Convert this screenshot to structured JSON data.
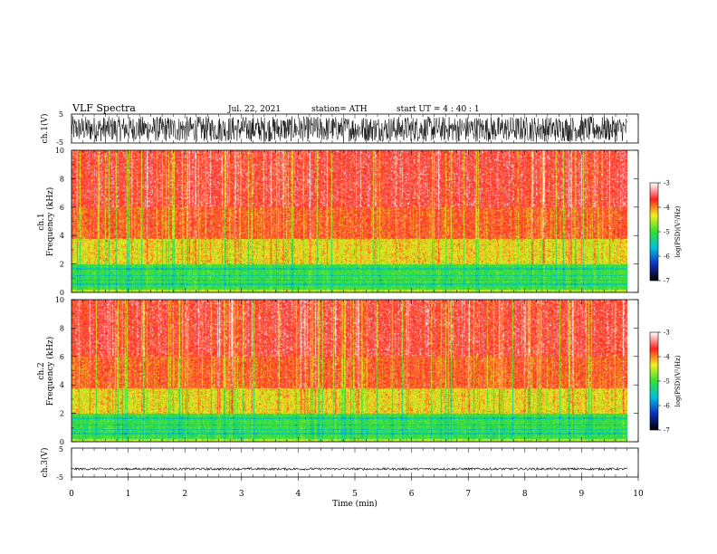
{
  "header": {
    "title": "VLF  Spectra",
    "date": "Jul.  22,  2021",
    "station": "station= ATH",
    "start_ut": "start  UT  =    4  : 40 : 1"
  },
  "chart_data": [
    {
      "id": "ch1_waveform",
      "type": "line",
      "ylabel": "ch.1(V)",
      "ylim": [
        -5,
        5
      ],
      "ytick_labels": [
        "5",
        "-5"
      ],
      "xlim": [
        0,
        10
      ],
      "series": [
        {
          "amplitude_range": [
            -4.5,
            4.2
          ],
          "color": "#000000"
        }
      ]
    },
    {
      "id": "ch1_spectrogram",
      "type": "heatmap",
      "ylabel": "ch.1\nFrequency  (kHz)",
      "ylim": [
        0,
        10
      ],
      "ytick_labels": [
        "0",
        "2",
        "4",
        "6",
        "8",
        "10"
      ],
      "xlim": [
        0,
        9.8
      ],
      "colorbar": {
        "label": "log(PSD)(V²/Hz)",
        "range": [
          -7,
          -3
        ],
        "tick_labels": [
          "-3",
          "-4",
          "-5",
          "-6",
          "-7"
        ],
        "colors": [
          "#000000",
          "#1030c0",
          "#00c0e0",
          "#30e030",
          "#f0f020",
          "#ff2020",
          "#ffffff"
        ]
      }
    },
    {
      "id": "ch2_spectrogram",
      "type": "heatmap",
      "ylabel": "ch.2\nFrequency  (kHz)",
      "ylim": [
        0,
        10
      ],
      "ytick_labels": [
        "0",
        "2",
        "4",
        "6",
        "8",
        "10"
      ],
      "xlim": [
        0,
        9.8
      ],
      "colorbar": {
        "label": "log(PSD)(V²/Hz)",
        "range": [
          -7,
          -3
        ],
        "tick_labels": [
          "-3",
          "-4",
          "-5",
          "-6",
          "-7"
        ],
        "colors": [
          "#000000",
          "#1030c0",
          "#00c0e0",
          "#30e030",
          "#f0f020",
          "#ff2020",
          "#ffffff"
        ]
      }
    },
    {
      "id": "ch3_waveform",
      "type": "line",
      "ylabel": "ch.3(V)",
      "ylim": [
        -5,
        5
      ],
      "ytick_labels": [
        "5",
        "-5"
      ],
      "xlim": [
        0,
        10
      ],
      "series": [
        {
          "mean": -2.2,
          "amplitude_range": [
            -2.6,
            -1.8
          ],
          "color": "#000000"
        }
      ]
    }
  ],
  "x_axis": {
    "label": "Time  (min)",
    "ticks": [
      0,
      1,
      2,
      3,
      4,
      5,
      6,
      7,
      8,
      9,
      10
    ],
    "tick_labels": [
      "0",
      "1",
      "2",
      "3",
      "4",
      "5",
      "6",
      "7",
      "8",
      "9",
      "10"
    ]
  }
}
